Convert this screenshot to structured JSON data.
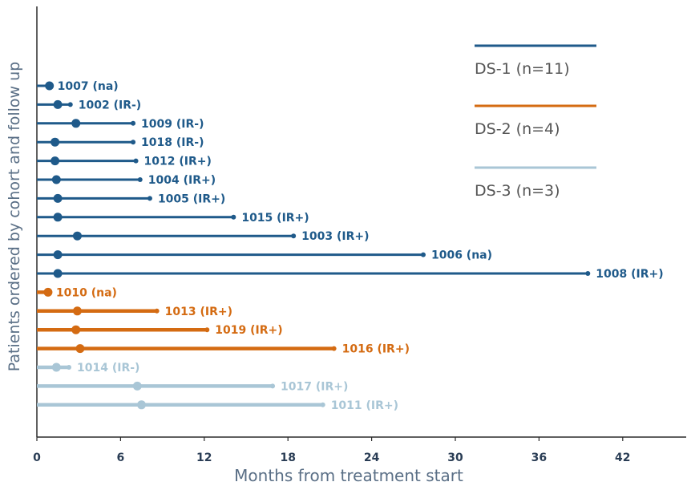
{
  "chart_data": {
    "type": "bar",
    "orientation": "horizontal",
    "xlabel": "Months from treatment start",
    "ylabel": "Patients ordered by cohort and follow up",
    "xlim": [
      0,
      46
    ],
    "xticks": [
      0,
      6,
      12,
      18,
      24,
      30,
      36,
      42
    ],
    "grid": false,
    "legend_position": "top-right",
    "series": [
      {
        "name": "DS-1 (n=11)",
        "color": "#1f5a8a"
      },
      {
        "name": "DS-2 (n=4)",
        "color": "#d46b12"
      },
      {
        "name": "DS-3 (n=3)",
        "color": "#a9c6d6"
      }
    ],
    "patients": [
      {
        "label": "1007 (na)",
        "series": 0,
        "marker": 0.9,
        "end": 0.9
      },
      {
        "label": "1002 (IR-)",
        "series": 0,
        "marker": 1.5,
        "end": 2.4
      },
      {
        "label": "1009 (IR-)",
        "series": 0,
        "marker": 2.8,
        "end": 6.9
      },
      {
        "label": "1018 (IR-)",
        "series": 0,
        "marker": 1.3,
        "end": 6.9
      },
      {
        "label": "1012 (IR+)",
        "series": 0,
        "marker": 1.3,
        "end": 7.1
      },
      {
        "label": "1004 (IR+)",
        "series": 0,
        "marker": 1.4,
        "end": 7.4
      },
      {
        "label": "1005 (IR+)",
        "series": 0,
        "marker": 1.5,
        "end": 8.1
      },
      {
        "label": "1015 (IR+)",
        "series": 0,
        "marker": 1.5,
        "end": 14.1
      },
      {
        "label": "1003 (IR+)",
        "series": 0,
        "marker": 2.9,
        "end": 18.4
      },
      {
        "label": "1006 (na)",
        "series": 0,
        "marker": 1.5,
        "end": 27.7
      },
      {
        "label": "1008 (IR+)",
        "series": 0,
        "marker": 1.5,
        "end": 39.5
      },
      {
        "label": "1010 (na)",
        "series": 1,
        "marker": 0.8,
        "end": 0.8
      },
      {
        "label": "1013 (IR+)",
        "series": 1,
        "marker": 2.9,
        "end": 8.6
      },
      {
        "label": "1019 (IR+)",
        "series": 1,
        "marker": 2.8,
        "end": 12.2
      },
      {
        "label": "1016 (IR+)",
        "series": 1,
        "marker": 3.1,
        "end": 21.3
      },
      {
        "label": "1014 (IR-)",
        "series": 2,
        "marker": 1.4,
        "end": 2.3
      },
      {
        "label": "1017 (IR+)",
        "series": 2,
        "marker": 7.2,
        "end": 16.9
      },
      {
        "label": "1011 (IR+)",
        "series": 2,
        "marker": 7.5,
        "end": 20.5
      }
    ]
  }
}
